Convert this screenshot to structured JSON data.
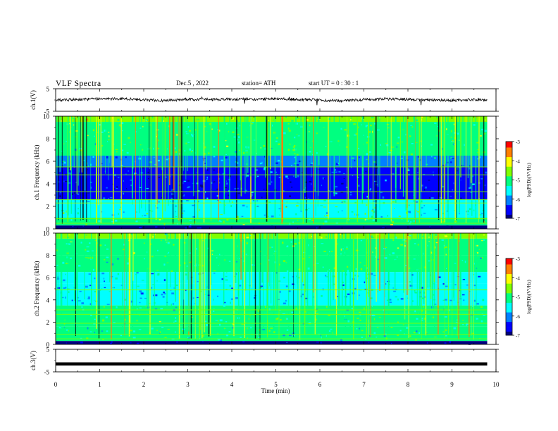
{
  "header": {
    "title": "VLF  Spectra",
    "date": "Dec.5  , 2022",
    "station": "station= ATH",
    "start": "start  UT  =    0  : 30 : 1"
  },
  "colors": {
    "colormap": [
      "#000080",
      "#0000ff",
      "#0080ff",
      "#00ffff",
      "#00ff80",
      "#80ff00",
      "#ffff00",
      "#ff8000",
      "#ff0000",
      "#ffffff"
    ],
    "trace": "#000000"
  },
  "chart_data": [
    {
      "type": "line",
      "panel": "ch1-waveform",
      "ylabel": "ch.1(V)",
      "ylim": [
        -5,
        5
      ],
      "yticks": [
        "5",
        "-5"
      ],
      "x": [
        0,
        0.5,
        1,
        1.5,
        2,
        2.5,
        3,
        3.5,
        4,
        4.5,
        5,
        5.5,
        6,
        6.5,
        7,
        7.5,
        8,
        8.5,
        9,
        9.5,
        9.8
      ],
      "values": [
        0.0,
        0.2,
        0.5,
        0.6,
        0.0,
        -0.3,
        0.3,
        0.2,
        0.4,
        0.3,
        0.6,
        0.3,
        0.0,
        -0.4,
        0.2,
        0.5,
        0.3,
        0.0,
        -0.2,
        0.2,
        0.0
      ]
    },
    {
      "type": "heatmap",
      "panel": "ch1-spectrogram",
      "ylabel": "ch.1 Frequency (kHz)",
      "ylim": [
        0,
        10
      ],
      "yticks": [
        "10",
        "8",
        "6",
        "4",
        "2",
        "0"
      ],
      "x_extent": [
        0,
        9.8
      ],
      "rows_log_psd": [
        {
          "f": [
            9.5,
            10.0
          ],
          "v": -4.5
        },
        {
          "f": [
            8.0,
            9.5
          ],
          "v": -4.8
        },
        {
          "f": [
            6.5,
            8.0
          ],
          "v": -5.0
        },
        {
          "f": [
            5.5,
            6.5
          ],
          "v": -5.8
        },
        {
          "f": [
            2.6,
            5.5
          ],
          "v": -6.3
        },
        {
          "f": [
            2.2,
            2.6
          ],
          "v": -5.4
        },
        {
          "f": [
            1.0,
            2.2
          ],
          "v": -5.3
        },
        {
          "f": [
            0.3,
            1.0
          ],
          "v": -4.9
        },
        {
          "f": [
            0.0,
            0.3
          ],
          "v": -7.0
        }
      ],
      "colorbar": {
        "label": "log(PSD)(V²/Hz)",
        "range": [
          -7,
          -3
        ],
        "ticks": [
          "-3",
          "-4",
          "-5",
          "-6",
          "-7"
        ]
      }
    },
    {
      "type": "heatmap",
      "panel": "ch2-spectrogram",
      "ylabel": "ch.2 Frequency (kHz)",
      "ylim": [
        0,
        10
      ],
      "yticks": [
        "10",
        "8",
        "6",
        "4",
        "2",
        "0"
      ],
      "x_extent": [
        0,
        9.8
      ],
      "rows_log_psd": [
        {
          "f": [
            9.5,
            10.0
          ],
          "v": -4.6
        },
        {
          "f": [
            8.0,
            9.5
          ],
          "v": -4.9
        },
        {
          "f": [
            6.5,
            8.0
          ],
          "v": -5.1
        },
        {
          "f": [
            5.5,
            6.5
          ],
          "v": -5.6
        },
        {
          "f": [
            3.5,
            5.5
          ],
          "v": -5.7
        },
        {
          "f": [
            2.8,
            3.5
          ],
          "v": -5.2
        },
        {
          "f": [
            1.6,
            2.8
          ],
          "v": -5.0
        },
        {
          "f": [
            0.3,
            1.6
          ],
          "v": -5.2
        },
        {
          "f": [
            0.0,
            0.3
          ],
          "v": -7.0
        }
      ],
      "colorbar": {
        "label": "log(PSD)(V²/Hz)",
        "range": [
          -7,
          -3
        ],
        "ticks": [
          "-3",
          "-4",
          "-5",
          "-6",
          "-7"
        ]
      }
    },
    {
      "type": "line",
      "panel": "ch3-waveform",
      "ylabel": "ch.3(V)",
      "ylim": [
        -5,
        5
      ],
      "yticks": [
        "5",
        "-5"
      ],
      "x": [
        0,
        9.8
      ],
      "values": [
        -1.5,
        -1.5
      ]
    }
  ],
  "xaxis": {
    "label": "Time  (min)",
    "range": [
      0,
      10
    ],
    "ticks": [
      "0",
      "1",
      "2",
      "3",
      "4",
      "5",
      "6",
      "7",
      "8",
      "9",
      "10"
    ]
  }
}
